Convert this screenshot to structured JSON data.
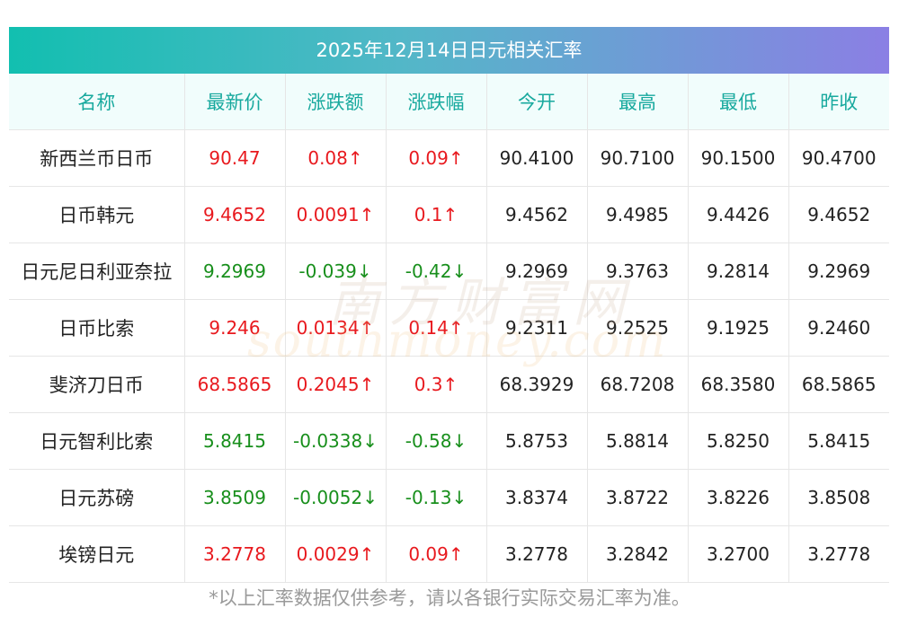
{
  "title": "2025年12月14日日元相关汇率",
  "columns": [
    "名称",
    "最新价",
    "涨跌额",
    "涨跌幅",
    "今开",
    "最高",
    "最低",
    "昨收"
  ],
  "rows": [
    {
      "name": "新西兰币日币",
      "latest": "90.47",
      "change": "0.08↑",
      "pct": "0.09↑",
      "open": "90.4100",
      "high": "90.7100",
      "low": "90.1500",
      "prev": "90.4700",
      "dir": "up"
    },
    {
      "name": "日币韩元",
      "latest": "9.4652",
      "change": "0.0091↑",
      "pct": "0.1↑",
      "open": "9.4562",
      "high": "9.4985",
      "low": "9.4426",
      "prev": "9.4652",
      "dir": "up"
    },
    {
      "name": "日元尼日利亚奈拉",
      "latest": "9.2969",
      "change": "-0.039↓",
      "pct": "-0.42↓",
      "open": "9.2969",
      "high": "9.3763",
      "low": "9.2814",
      "prev": "9.2969",
      "dir": "down"
    },
    {
      "name": "日币比索",
      "latest": "9.246",
      "change": "0.0134↑",
      "pct": "0.14↑",
      "open": "9.2311",
      "high": "9.2525",
      "low": "9.1925",
      "prev": "9.2460",
      "dir": "up"
    },
    {
      "name": "斐济刀日币",
      "latest": "68.5865",
      "change": "0.2045↑",
      "pct": "0.3↑",
      "open": "68.3929",
      "high": "68.7208",
      "low": "68.3580",
      "prev": "68.5865",
      "dir": "up"
    },
    {
      "name": "日元智利比索",
      "latest": "5.8415",
      "change": "-0.0338↓",
      "pct": "-0.58↓",
      "open": "5.8753",
      "high": "5.8814",
      "low": "5.8250",
      "prev": "5.8415",
      "dir": "down"
    },
    {
      "name": "日元苏磅",
      "latest": "3.8509",
      "change": "-0.0052↓",
      "pct": "-0.13↓",
      "open": "3.8374",
      "high": "3.8722",
      "low": "3.8226",
      "prev": "3.8508",
      "dir": "down"
    },
    {
      "name": "埃镑日元",
      "latest": "3.2778",
      "change": "0.0029↑",
      "pct": "0.09↑",
      "open": "3.2778",
      "high": "3.2842",
      "low": "3.2700",
      "prev": "3.2778",
      "dir": "up"
    }
  ],
  "watermark": {
    "cn": "南方财富网",
    "en": "southmoney.com"
  },
  "footnote": "*以上汇率数据仅供参考，请以各银行实际交易汇率为准。",
  "colors": {
    "up": "#e8191e",
    "down": "#188f1c",
    "header_text": "#18a99e"
  }
}
